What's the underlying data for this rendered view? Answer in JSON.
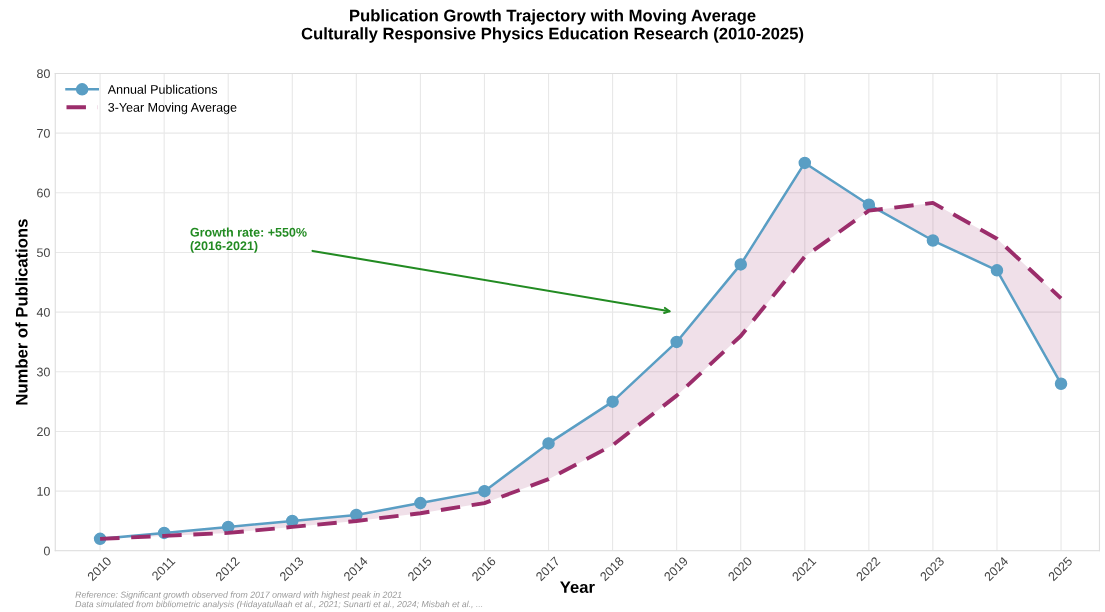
{
  "chart_data": {
    "type": "line",
    "title": "Publication Growth Trajectory with Moving Average\nCulturally Responsive Physics Education Research (2010-2025)",
    "xlabel": "Year",
    "ylabel": "Number of Publications",
    "x": [
      2010,
      2011,
      2012,
      2013,
      2014,
      2015,
      2016,
      2017,
      2018,
      2019,
      2020,
      2021,
      2022,
      2023,
      2024,
      2025
    ],
    "series": [
      {
        "name": "Annual Publications",
        "color": "#5a9ec4",
        "marker": "circle",
        "line_style": "solid",
        "values": [
          2,
          3,
          4,
          5,
          6,
          8,
          10,
          18,
          25,
          35,
          48,
          65,
          58,
          52,
          47,
          28
        ],
        "lower": [
          2,
          2.5,
          3,
          4,
          5,
          6.3,
          8,
          12,
          17.7,
          26,
          36,
          49.3,
          57,
          58.3,
          52.3,
          42.3
        ],
        "upper": [
          2,
          3,
          4,
          5,
          6,
          8,
          10,
          18,
          25,
          35,
          48,
          65,
          58,
          52,
          47,
          28
        ]
      },
      {
        "name": "3-Year Moving Average",
        "color": "#9b2d6b",
        "marker": "none",
        "line_style": "dashed",
        "values": [
          2,
          2.5,
          3,
          4,
          5,
          6.3,
          8,
          12,
          17.7,
          26,
          36,
          49.3,
          57,
          58.3,
          52.3,
          42.3
        ]
      }
    ],
    "xlim": [
      2009.3,
      2025.6
    ],
    "xticks": [
      2010,
      2011,
      2012,
      2013,
      2014,
      2015,
      2016,
      2017,
      2018,
      2019,
      2020,
      2021,
      2022,
      2023,
      2024,
      2025
    ],
    "ylim": [
      0,
      80
    ],
    "yticks": [
      0,
      10,
      20,
      30,
      40,
      50,
      60,
      70,
      80
    ],
    "grid": true,
    "legend": "top left",
    "annotations": [
      "Growth rate: +550%\n(2016-2021)",
      "Reference: Significant growth observed from 2017 onward with highest peak in 2021\nData simulated from bibliometric analysis (Hidayatullaah et al., 2021; Sunarti et al., 2024; Misbah et al., ..."
    ]
  }
}
